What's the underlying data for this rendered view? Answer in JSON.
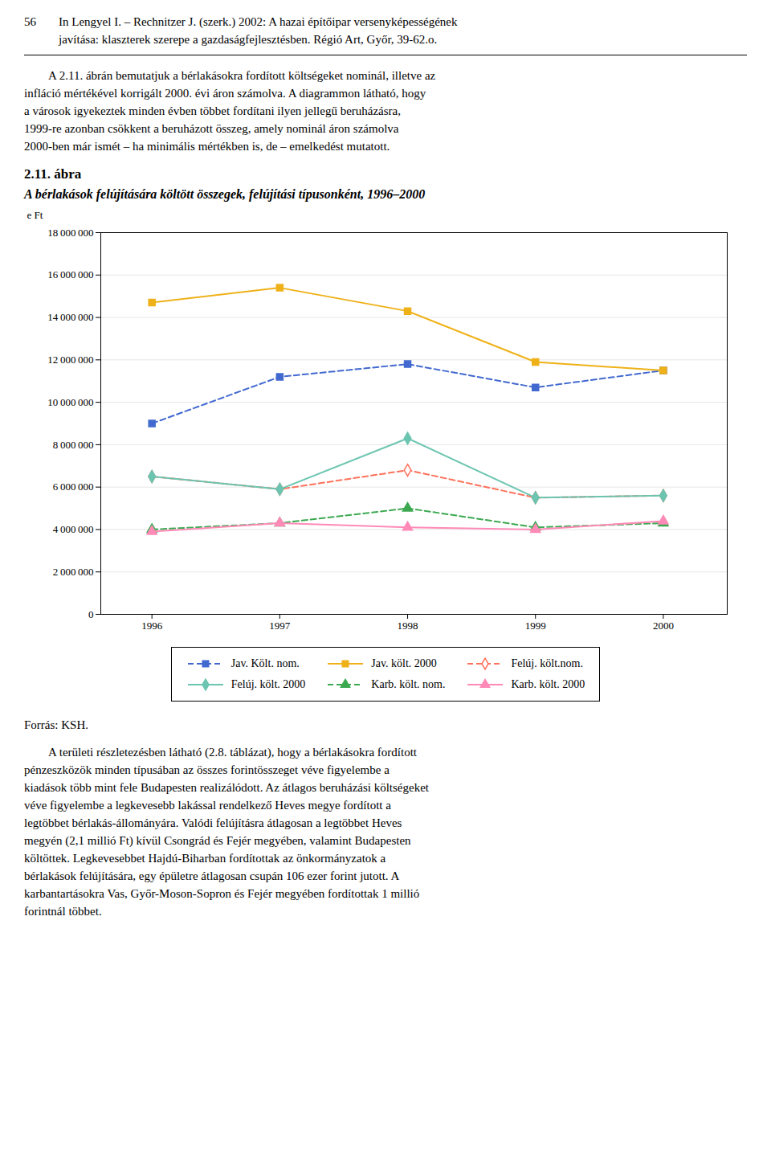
{
  "chart_data": {
    "type": "line",
    "title": "2.11. ábra",
    "subtitle": "A bérlakások felújítására költött összegek, felújítási típusonként, 1996–2000",
    "ylabel": "e Ft",
    "x": [
      1996,
      1997,
      1998,
      1999,
      2000
    ],
    "xlim": [
      1995.6,
      2000.5
    ],
    "xticks": [
      1996,
      1997,
      1998,
      1999,
      2000
    ],
    "ylim": [
      0,
      18000000
    ],
    "yticks": [
      0,
      {
        "value": 2000000,
        "label": "2 000 000"
      },
      {
        "value": 4000000,
        "label": "4 000 000"
      },
      {
        "value": 6000000,
        "label": "6 000 000"
      },
      {
        "value": 8000000,
        "label": "8 000 000"
      },
      {
        "value": 10000000,
        "label": "10 000 000"
      },
      {
        "value": 12000000,
        "label": "12 000 000"
      },
      {
        "value": 14000000,
        "label": "14 000 000"
      },
      {
        "value": 16000000,
        "label": "16 000 000"
      },
      {
        "value": 18000000,
        "label": "18 000 000"
      }
    ],
    "grid": "y",
    "legend": "bottom",
    "series": [
      {
        "name": "Jav. Költ. nom.",
        "marker": "square",
        "line_style": "dashed",
        "values": [
          9000000,
          11200000,
          11800000,
          10700000,
          11500000
        ]
      },
      {
        "name": "Jav. költ. 2000",
        "marker": "square",
        "line_style": "solid",
        "values": [
          14700000,
          15400000,
          14300000,
          11900000,
          11500000
        ]
      },
      {
        "name": "Felúj. költ.nom.",
        "marker": "diamond-open",
        "line_style": "dashed",
        "values": [
          6500000,
          5900000,
          6800000,
          5500000,
          5600000
        ]
      },
      {
        "name": "Felúj. költ. 2000",
        "marker": "diamond",
        "line_style": "solid",
        "values": [
          6500000,
          5900000,
          8300000,
          5500000,
          5600000
        ]
      },
      {
        "name": "Karb. költ. nom.",
        "marker": "triangle",
        "line_style": "dashed",
        "values": [
          4000000,
          4300000,
          5000000,
          4100000,
          4300000
        ]
      },
      {
        "name": "Karb. költ. 2000",
        "marker": "triangle",
        "line_style": "solid",
        "values": [
          3900000,
          4300000,
          4100000,
          4000000,
          4400000
        ]
      }
    ],
    "annotations": {
      "header": [
        "56",
        "In Lengyel I. – Rechnitzer J. (szerk.) 2002: A hazai építőipar versenyképességének",
        "javítása: klaszterek szerepe a gazdaságfejlesztésben. Régió Art, Győr, 39-62.o."
      ],
      "before_chart": [
        "A 2.11. ábrán bemutatjuk a bérlakásokra fordított költségeket nominál, illetve az",
        "infláció mértékével korrigált 2000. évi áron számolva. A diagrammon látható, hogy",
        "a városok igyekeztek minden évben többet fordítani ilyen jellegű beruházásra,",
        "1999-re azonban csökkent a beruházott összeg, amely nominál áron számolva",
        "2000-ben már ismét – ha minimális mértékben is, de – emelkedést mutatott."
      ],
      "after_chart": [
        "Forrás: KSH.",
        "A területi részletezésben látható (2.8. táblázat), hogy a bérlakásokra fordított",
        "pénzeszközök minden típusában az összes forintösszeget véve figyelembe a",
        "kiadások több mint fele Budapesten realizálódott. Az átlagos beruházási költségeket",
        "véve figyelembe a legkevesebb lakással rendelkező Heves megye fordított a",
        "legtöbbet bérlakás-állományára. Valódi felújításra átlagosan a legtöbbet Heves",
        "megyén (2,1 millió Ft) kívül Csongrád és Fejér megyében, valamint Budapesten",
        "költöttek. Legkevesebbet Hajdú-Biharban fordítottak az önkormányzatok a",
        "bérlakások felújítására, egy épületre átlagosan csupán 106 ezer forint jutott. A",
        "karbantartásokra Vas, Győr-Moson-Sopron és Fejér megyében fordítottak 1 millió",
        "forintnál többet."
      ]
    }
  }
}
